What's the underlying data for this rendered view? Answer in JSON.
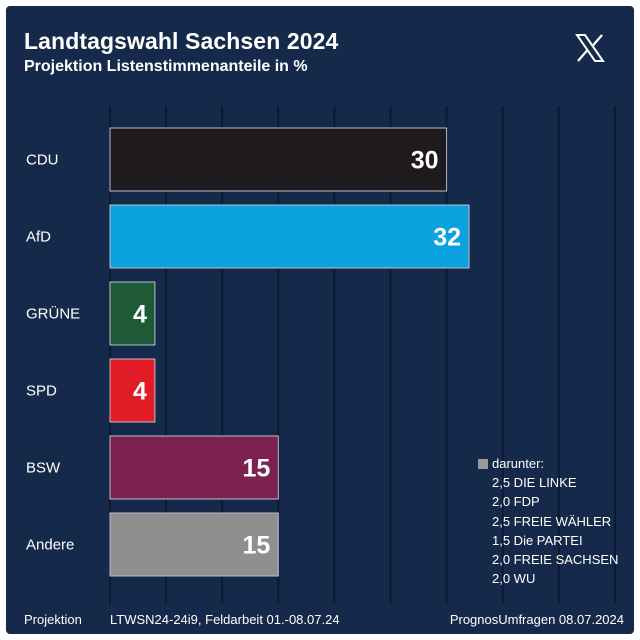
{
  "header": {
    "title": "Landtagswahl Sachsen 2024",
    "subtitle": "Projektion Listenstimmenanteile in %"
  },
  "logo_icon": "x-logo-icon",
  "chart_data": {
    "type": "bar",
    "orientation": "horizontal",
    "categories": [
      "CDU",
      "AfD",
      "GRÜNE",
      "SPD",
      "BSW",
      "Andere"
    ],
    "values": [
      30,
      32,
      4,
      4,
      15,
      15
    ],
    "colors": [
      "#1e1a1d",
      "#0aa3e0",
      "#1f5a36",
      "#e11c26",
      "#7d2150",
      "#8f8f8f"
    ],
    "title": "Landtagswahl Sachsen 2024",
    "xlim": [
      0,
      46
    ],
    "grid": true
  },
  "note": {
    "heading": "darunter:",
    "items": [
      "2,5 DIE LINKE",
      "2,0 FDP",
      "2,5 FREIE WÄHLER",
      "1,5 Die PARTEI",
      "2,0 FREIE SACHSEN",
      "2,0 WU"
    ]
  },
  "footer": {
    "label": "Projektion",
    "study": "LTWSN24-24i9, Feldarbeit 01.-08.07.24",
    "source": "PrognosUmfragen 08.07.2024"
  },
  "colors": {
    "background": "#152a4a",
    "grid": "#0b1a30",
    "text": "#ffffff"
  }
}
